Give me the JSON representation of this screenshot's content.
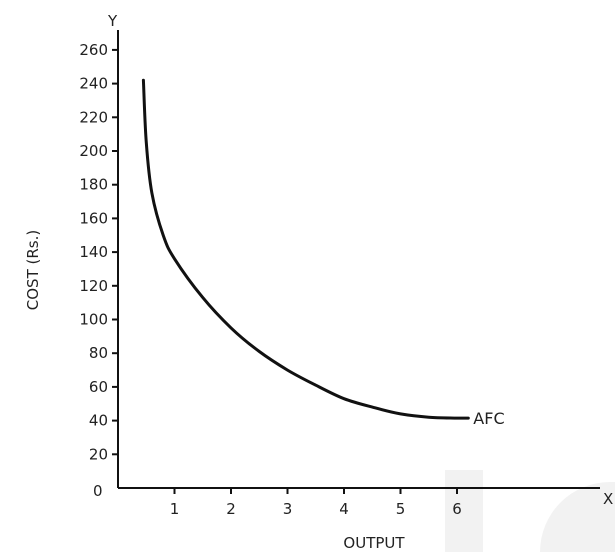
{
  "chart_data": {
    "type": "line",
    "xlabel": "OUTPUT",
    "ylabel": "COST (Rs.)",
    "x_axis_letter": "X",
    "y_axis_letter": "Y",
    "origin_label": "0",
    "x_ticks": [
      "1",
      "2",
      "3",
      "4",
      "5",
      "6"
    ],
    "y_ticks": [
      "20",
      "40",
      "60",
      "80",
      "100",
      "120",
      "140",
      "160",
      "180",
      "200",
      "220",
      "240",
      "260"
    ],
    "xlim": [
      0,
      6.5
    ],
    "ylim": [
      0,
      265
    ],
    "grid": false,
    "series": [
      {
        "name": "AFC",
        "color": "#111111",
        "x": [
          0.45,
          0.5,
          0.6,
          0.8,
          1.0,
          1.5,
          2.0,
          2.5,
          3.0,
          3.5,
          4.0,
          4.5,
          5.0,
          5.5,
          6.0,
          6.2
        ],
        "y": [
          242,
          205,
          175,
          150,
          136,
          113,
          95,
          81,
          70,
          61,
          53,
          48,
          44,
          42,
          41.5,
          41.5
        ]
      }
    ]
  }
}
